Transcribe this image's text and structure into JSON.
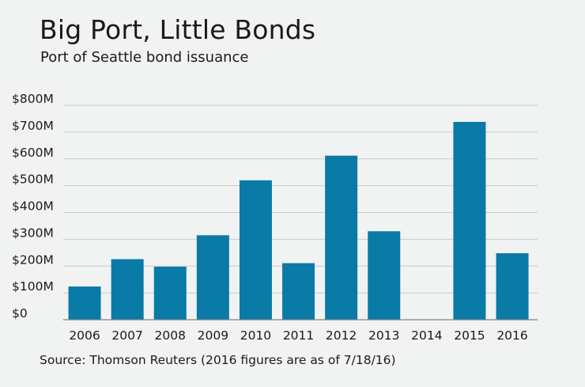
{
  "colors": {
    "background": "#f1f2f2",
    "bar": "#0a7aa6",
    "grid": "#c9cccd",
    "axis": "#7f8486",
    "text": "#1a1a1a"
  },
  "chart_data": {
    "type": "bar",
    "title": "Big Port, Little Bonds",
    "subtitle": "Port of Seattle bond issuance",
    "source": "Source: Thomson Reuters (2016 figures are as of 7/18/16)",
    "categories": [
      "2006",
      "2007",
      "2008",
      "2009",
      "2010",
      "2011",
      "2012",
      "2013",
      "2014",
      "2015",
      "2016"
    ],
    "values": [
      124,
      226,
      198,
      315,
      520,
      211,
      612,
      330,
      0,
      738,
      248
    ],
    "unit": "$M",
    "ylim": [
      0,
      800
    ],
    "yticks": [
      0,
      100,
      200,
      300,
      400,
      500,
      600,
      700,
      800
    ],
    "ytick_labels": [
      "$0",
      "$100M",
      "$200M",
      "$300M",
      "$400M",
      "$500M",
      "$600M",
      "$700M",
      "$800M"
    ],
    "grid": true,
    "legend": "none"
  }
}
